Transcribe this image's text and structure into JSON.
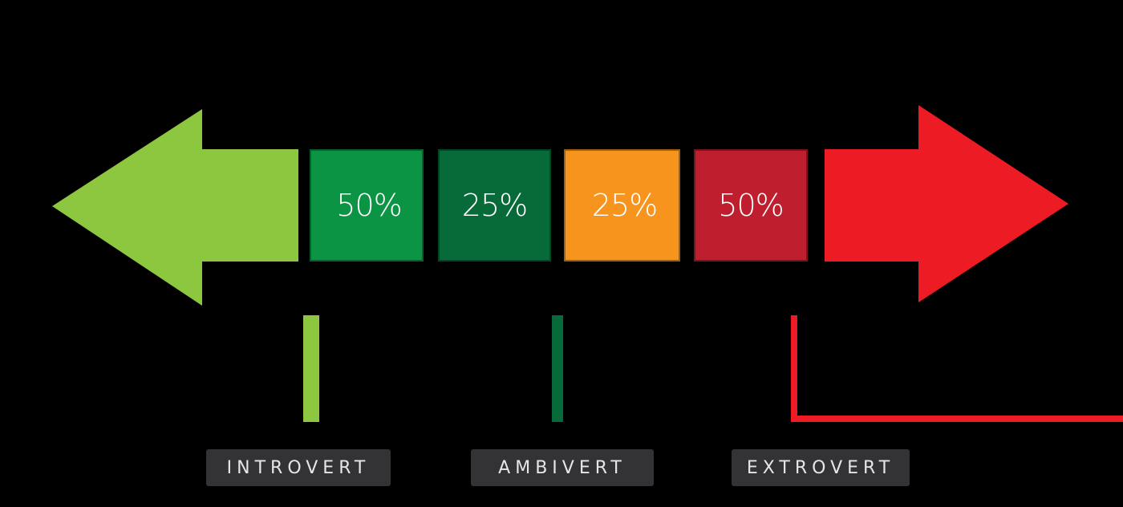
{
  "colors": {
    "introvert_arrow": "#8dc63f",
    "box1": "#0b9444",
    "box2": "#076a39",
    "box3": "#f6941d",
    "box4": "#be1e2d",
    "extrovert_arrow": "#ed1c24",
    "label_bg": "#333336"
  },
  "boxes": [
    {
      "value": "50%"
    },
    {
      "value": "25%"
    },
    {
      "value": "25%"
    },
    {
      "value": "50%"
    }
  ],
  "labels": {
    "introvert": "INTROVERT",
    "ambivert": "AMBIVERT",
    "extrovert": "EXTROVERT"
  }
}
